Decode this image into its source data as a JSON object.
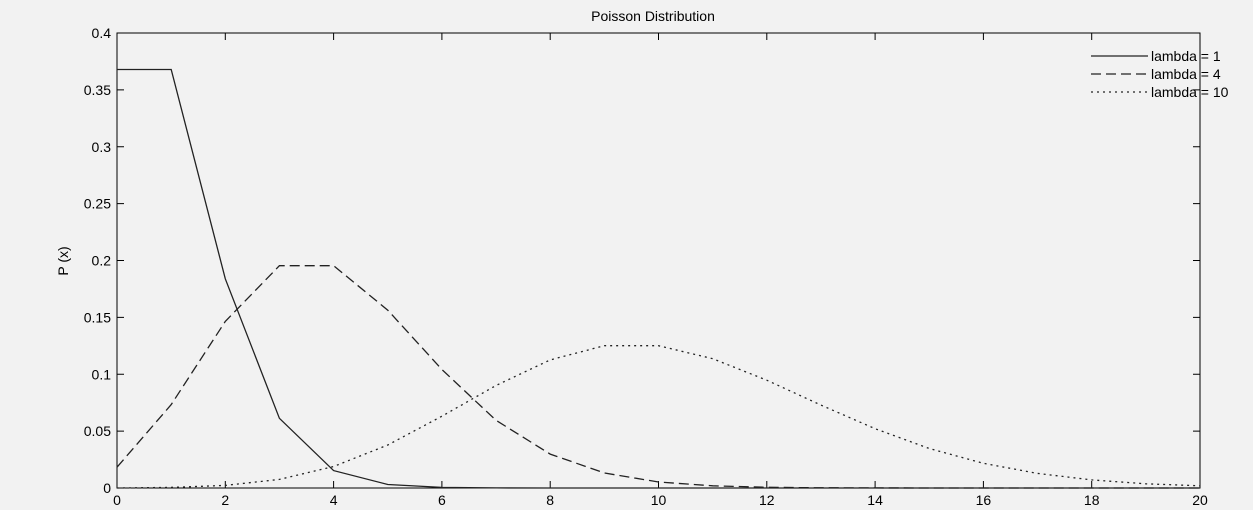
{
  "chart_data": {
    "type": "line",
    "title": "Poisson Distribution",
    "xlabel": "",
    "ylabel": "P (x)",
    "xlim": [
      0,
      20
    ],
    "ylim": [
      0,
      0.4
    ],
    "xticks": [
      0,
      2,
      4,
      6,
      8,
      10,
      12,
      14,
      16,
      18,
      20
    ],
    "xtick_labels": [
      "0",
      "2",
      "4",
      "6",
      "8",
      "10",
      "12",
      "14",
      "16",
      "18",
      "20"
    ],
    "yticks": [
      0,
      0.05,
      0.1,
      0.15,
      0.2,
      0.25,
      0.3,
      0.35,
      0.4
    ],
    "ytick_labels": [
      "0",
      "0.05",
      "0.1",
      "0.15",
      "0.2",
      "0.25",
      "0.3",
      "0.35",
      "0.4"
    ],
    "grid": false,
    "legend_position": "top-right",
    "x": [
      0,
      1,
      2,
      3,
      4,
      5,
      6,
      7,
      8,
      9,
      10,
      11,
      12,
      13,
      14,
      15,
      16,
      17,
      18,
      19,
      20
    ],
    "series": [
      {
        "name": "lambda = 1",
        "style": "solid",
        "values": [
          0.3679,
          0.3679,
          0.1839,
          0.0613,
          0.0153,
          0.0031,
          0.0005,
          0.0001,
          0.0,
          0.0,
          0.0,
          0.0,
          0.0,
          0.0,
          0.0,
          0.0,
          0.0,
          0.0,
          0.0,
          0.0,
          0.0
        ]
      },
      {
        "name": "lambda = 4",
        "style": "dashed",
        "values": [
          0.0183,
          0.0733,
          0.1465,
          0.1954,
          0.1954,
          0.1563,
          0.1042,
          0.0595,
          0.0298,
          0.0132,
          0.0053,
          0.0019,
          0.0006,
          0.0002,
          0.0001,
          0.0,
          0.0,
          0.0,
          0.0,
          0.0,
          0.0
        ]
      },
      {
        "name": "lambda = 10",
        "style": "dotted",
        "values": [
          0.0,
          0.0005,
          0.0023,
          0.0076,
          0.0189,
          0.0378,
          0.0631,
          0.0901,
          0.1126,
          0.1251,
          0.1251,
          0.1137,
          0.0948,
          0.0729,
          0.0521,
          0.0347,
          0.0217,
          0.0128,
          0.0071,
          0.0037,
          0.0019
        ]
      }
    ]
  }
}
